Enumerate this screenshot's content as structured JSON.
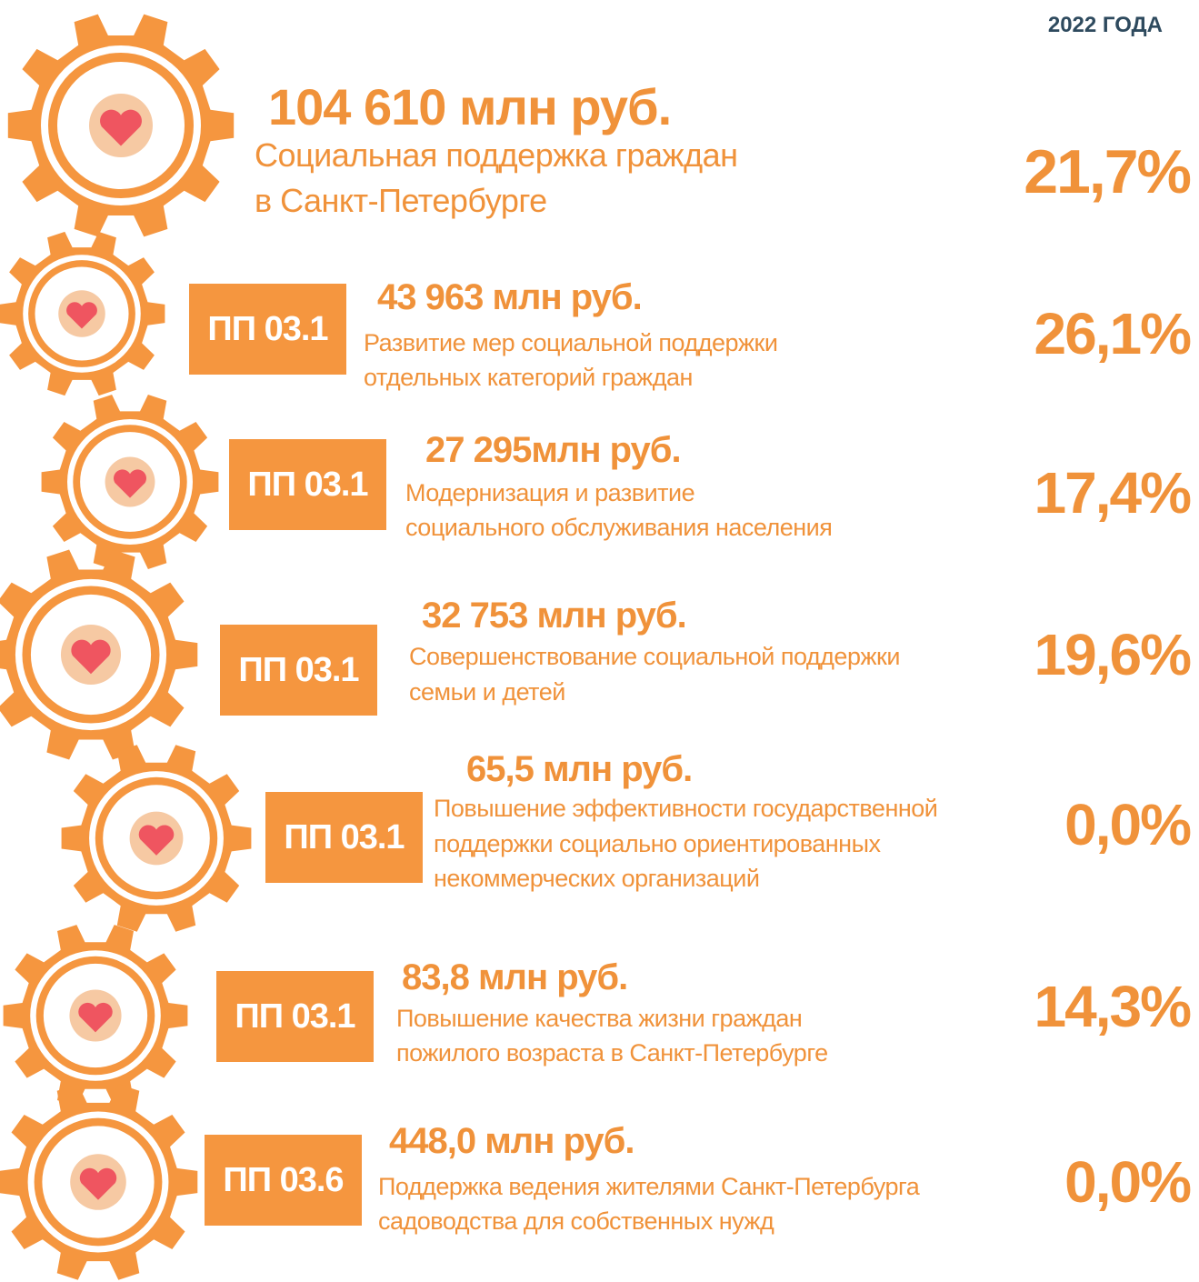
{
  "header": {
    "period": "2022 ГОДА"
  },
  "rows": [
    {
      "amount": "104 610 млн руб.",
      "description": [
        "Социальная поддержка граждан",
        "в Санкт-Петербурге"
      ],
      "percent": "21,7%"
    },
    {
      "code": "ПП 03.1",
      "amount": "43 963 млн руб.",
      "description": [
        "Развитие мер социальной поддержки",
        "отдельных категорий граждан"
      ],
      "percent": "26,1%"
    },
    {
      "code": "ПП 03.1",
      "amount": "27 295млн руб.",
      "description": [
        "Модернизация и развитие",
        "социального обслуживания населения"
      ],
      "percent": "17,4%"
    },
    {
      "code": "ПП 03.1",
      "amount": "32 753 млн руб.",
      "description": [
        "Совершенствование социальной поддержки",
        "семьи и детей"
      ],
      "percent": "19,6%"
    },
    {
      "code": "ПП 03.1",
      "amount": "65,5 млн руб.",
      "description": [
        "Повышение эффективности государственной",
        "поддержки социально ориентированных",
        "некоммерческих организаций"
      ],
      "percent": "0,0%"
    },
    {
      "code": "ПП 03.1",
      "amount": "83,8 млн руб.",
      "description": [
        "Повышение качества жизни граждан",
        "пожилого возраста в Санкт-Петербурге"
      ],
      "percent": "14,3%"
    },
    {
      "code": "ПП 03.6",
      "amount": "448,0 млн руб.",
      "description": [
        "Поддержка ведения жителями Санкт-Петербурга",
        "садоводства для собственных нужд"
      ],
      "percent": "0,0%"
    }
  ]
}
